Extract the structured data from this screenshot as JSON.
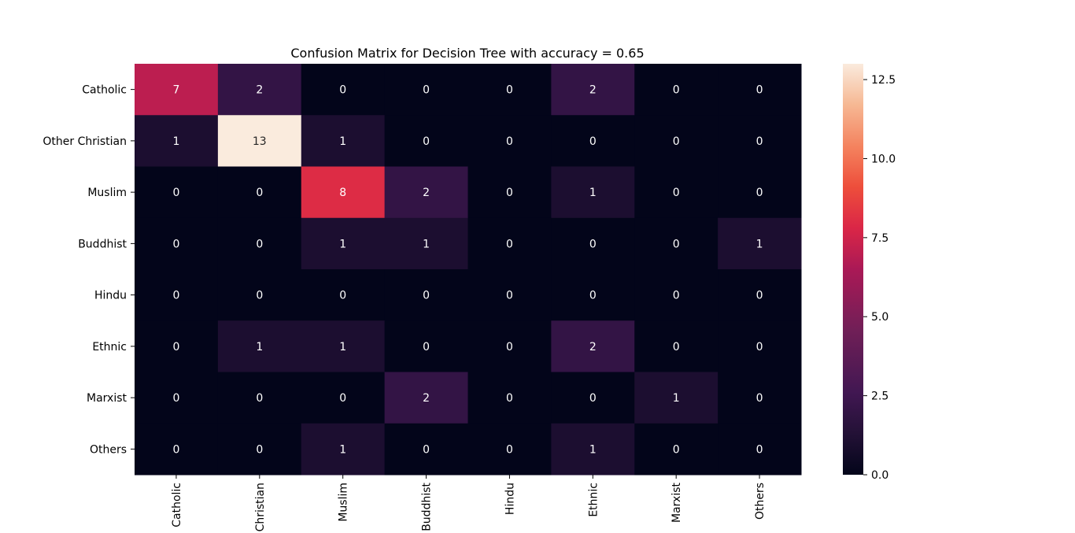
{
  "chart_data": {
    "type": "heatmap",
    "title": "Confusion Matrix for Decision Tree with accuracy = 0.65",
    "xlabel": "",
    "ylabel": "",
    "row_labels": [
      "Catholic",
      "Other Christian",
      "Muslim",
      "Buddhist",
      "Hindu",
      "Ethnic",
      "Marxist",
      "Others"
    ],
    "col_labels": [
      "Catholic",
      "Christian",
      "Muslim",
      "Buddhist",
      "Hindu",
      "Ethnic",
      "Marxist",
      "Others"
    ],
    "values": [
      [
        7,
        2,
        0,
        0,
        0,
        2,
        0,
        0
      ],
      [
        1,
        13,
        1,
        0,
        0,
        0,
        0,
        0
      ],
      [
        0,
        0,
        8,
        2,
        0,
        1,
        0,
        0
      ],
      [
        0,
        0,
        1,
        1,
        0,
        0,
        0,
        1
      ],
      [
        0,
        0,
        0,
        0,
        0,
        0,
        0,
        0
      ],
      [
        0,
        1,
        1,
        0,
        0,
        2,
        0,
        0
      ],
      [
        0,
        0,
        0,
        2,
        0,
        0,
        1,
        0
      ],
      [
        0,
        0,
        1,
        0,
        0,
        1,
        0,
        0
      ]
    ],
    "colorbar": {
      "range": [
        0,
        13
      ],
      "ticks": [
        0.0,
        2.5,
        5.0,
        7.5,
        10.0,
        12.5
      ],
      "tick_labels": [
        "0.0",
        "2.5",
        "5.0",
        "7.5",
        "10.0",
        "12.5"
      ],
      "colormap": "rocket"
    },
    "annotations": true,
    "grid": false,
    "legend": "none",
    "colors": {
      "label_light": "#ffffff",
      "label_dark": "#262626"
    }
  }
}
